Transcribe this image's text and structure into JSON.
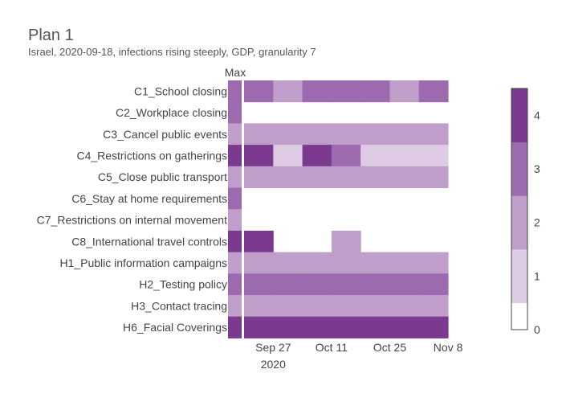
{
  "chart_data": {
    "type": "heatmap",
    "title": "Plan 1",
    "subtitle": "Israel, 2020-09-18, infections rising steeply, GDP, granularity 7",
    "max_column_label": "Max",
    "rows": [
      "C1_School closing",
      "C2_Workplace closing",
      "C3_Cancel public events",
      "C4_Restrictions on gatherings",
      "C5_Close public transport",
      "C6_Stay at home requirements",
      "C7_Restrictions on internal movement",
      "C8_International travel controls",
      "H1_Public information campaigns",
      "H2_Testing policy",
      "H3_Contact tracing",
      "H6_Facial Coverings"
    ],
    "max_values": [
      3,
      3,
      2,
      4,
      2,
      3,
      2,
      4,
      2,
      3,
      2,
      4
    ],
    "week_starts": [
      "2020-09-20",
      "2020-09-27",
      "2020-10-04",
      "2020-10-11",
      "2020-10-18",
      "2020-10-25",
      "2020-11-01"
    ],
    "values": [
      [
        3,
        2,
        3,
        3,
        3,
        2,
        3
      ],
      [
        null,
        null,
        null,
        null,
        null,
        null,
        null
      ],
      [
        2,
        2,
        2,
        2,
        2,
        2,
        2
      ],
      [
        4,
        1,
        4,
        3,
        1,
        1,
        1
      ],
      [
        2,
        2,
        2,
        2,
        2,
        2,
        2
      ],
      [
        null,
        null,
        null,
        null,
        null,
        null,
        null
      ],
      [
        null,
        null,
        null,
        null,
        null,
        null,
        null
      ],
      [
        4,
        null,
        null,
        2,
        null,
        null,
        null
      ],
      [
        2,
        2,
        2,
        2,
        2,
        2,
        2
      ],
      [
        3,
        3,
        3,
        3,
        3,
        3,
        3
      ],
      [
        2,
        2,
        2,
        2,
        2,
        2,
        2
      ],
      [
        4,
        4,
        4,
        4,
        4,
        4,
        4
      ]
    ],
    "x_ticks": [
      {
        "date": "2020-09-27",
        "label": "Sep 27",
        "sublabel": "2020"
      },
      {
        "date": "2020-10-11",
        "label": "Oct 11",
        "sublabel": ""
      },
      {
        "date": "2020-10-25",
        "label": "Oct 25",
        "sublabel": ""
      },
      {
        "date": "2020-11-08",
        "label": "Nov 8",
        "sublabel": ""
      }
    ],
    "colorscale": {
      "min": 0,
      "max": 4.5,
      "ticks": [
        0,
        1,
        2,
        3,
        4
      ],
      "colors": [
        "#ffffff",
        "#ddcbe3",
        "#bf9ec9",
        "#9e6aaf",
        "#7b3990"
      ]
    },
    "colors": {
      "text": "#444444",
      "title": "#555555",
      "separator": "#ffffff",
      "colorbar_border": "#444444"
    }
  }
}
